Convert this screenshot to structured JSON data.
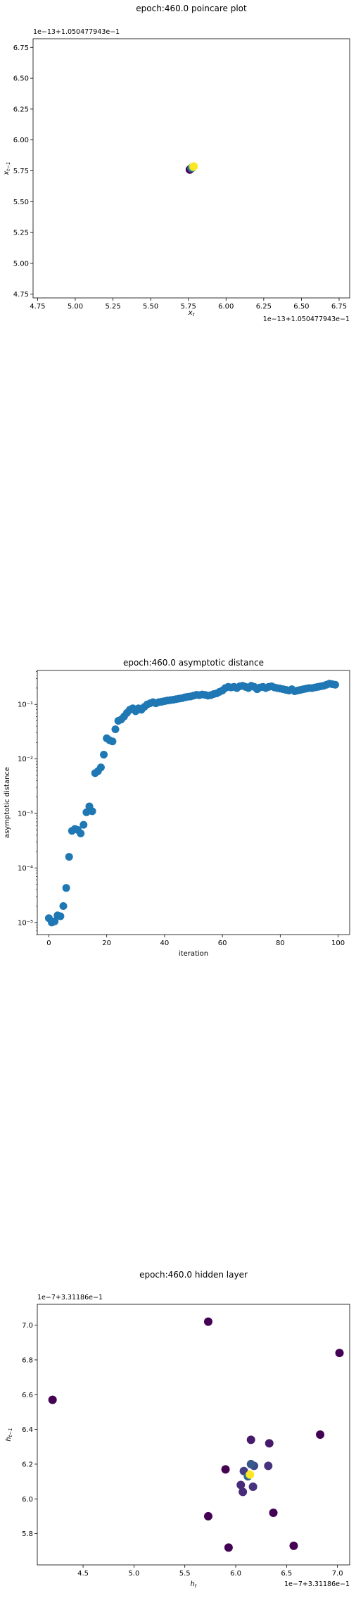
{
  "chart_data": [
    {
      "type": "scatter",
      "title": "epoch:460.0 poincare plot",
      "xlabel": "x_t",
      "ylabel": "x_{t-1}",
      "x_offset_text": "1e−13+1.050477943e−1",
      "y_offset_text": "1e−13+1.050477943e−1",
      "xlim": [
        4.72,
        6.82
      ],
      "ylim": [
        4.72,
        6.82
      ],
      "xticks": [
        "4.75",
        "5.00",
        "5.25",
        "5.50",
        "5.75",
        "6.00",
        "6.25",
        "6.50",
        "6.75"
      ],
      "yticks": [
        "4.75",
        "5.00",
        "5.25",
        "5.50",
        "5.75",
        "6.00",
        "6.25",
        "6.50",
        "6.75"
      ],
      "points": [
        {
          "x": 5.76,
          "y": 5.76,
          "color": "#440154"
        },
        {
          "x": 5.77,
          "y": 5.77,
          "color": "#3b528b"
        },
        {
          "x": 5.78,
          "y": 5.78,
          "color": "#21918c"
        },
        {
          "x": 5.78,
          "y": 5.78,
          "color": "#5ec962"
        },
        {
          "x": 5.785,
          "y": 5.785,
          "color": "#fde725"
        }
      ]
    },
    {
      "type": "scatter",
      "title": "epoch:460.0 asymptotic distance",
      "xlabel": "iteration",
      "ylabel": "asymptotic distance",
      "yscale": "log",
      "xlim": [
        -4,
        104
      ],
      "ylim": [
        6e-06,
        0.42
      ],
      "xticks": [
        "0",
        "20",
        "40",
        "60",
        "80",
        "100"
      ],
      "yticks": [
        "10⁻⁵",
        "10⁻⁴",
        "10⁻³",
        "10⁻²",
        "10⁻¹"
      ],
      "color": "#1f77b4",
      "x": [
        0,
        1,
        2,
        3,
        4,
        5,
        6,
        7,
        8,
        9,
        10,
        11,
        12,
        13,
        14,
        15,
        16,
        17,
        18,
        19,
        20,
        21,
        22,
        23,
        24,
        25,
        26,
        27,
        28,
        29,
        30,
        31,
        32,
        33,
        34,
        35,
        36,
        37,
        38,
        39,
        40,
        41,
        42,
        43,
        44,
        45,
        46,
        47,
        48,
        49,
        50,
        51,
        52,
        53,
        54,
        55,
        56,
        57,
        58,
        59,
        60,
        61,
        62,
        63,
        64,
        65,
        66,
        67,
        68,
        69,
        70,
        71,
        72,
        73,
        74,
        75,
        76,
        77,
        78,
        79,
        80,
        81,
        82,
        83,
        84,
        85,
        86,
        87,
        88,
        89,
        90,
        91,
        92,
        93,
        94,
        95,
        96,
        97,
        98,
        99
      ],
      "y": [
        1.2e-05,
        1e-05,
        1.05e-05,
        1.35e-05,
        1.3e-05,
        2e-05,
        4.3e-05,
        0.00016,
        0.00048,
        0.00052,
        0.0005,
        0.00043,
        0.00062,
        0.00105,
        0.00135,
        0.0011,
        0.0055,
        0.006,
        0.007,
        0.012,
        0.024,
        0.022,
        0.021,
        0.035,
        0.05,
        0.053,
        0.06,
        0.07,
        0.08,
        0.085,
        0.075,
        0.085,
        0.08,
        0.09,
        0.1,
        0.105,
        0.11,
        0.105,
        0.11,
        0.112,
        0.115,
        0.118,
        0.12,
        0.122,
        0.125,
        0.128,
        0.13,
        0.135,
        0.138,
        0.14,
        0.145,
        0.15,
        0.148,
        0.152,
        0.15,
        0.145,
        0.148,
        0.155,
        0.16,
        0.17,
        0.18,
        0.2,
        0.21,
        0.205,
        0.21,
        0.2,
        0.215,
        0.22,
        0.21,
        0.2,
        0.22,
        0.21,
        0.19,
        0.205,
        0.21,
        0.2,
        0.21,
        0.215,
        0.205,
        0.2,
        0.195,
        0.19,
        0.185,
        0.18,
        0.19,
        0.175,
        0.18,
        0.185,
        0.19,
        0.195,
        0.2,
        0.2,
        0.205,
        0.21,
        0.215,
        0.22,
        0.23,
        0.24,
        0.235,
        0.23
      ]
    },
    {
      "type": "scatter",
      "title": "epoch:460.0 hidden layer",
      "xlabel": "h_t",
      "ylabel": "h_{t-1}",
      "x_offset_text": "1e−7+3.31186e−1",
      "y_offset_text": "1e−7+3.31186e−1",
      "xlim": [
        4.05,
        7.12
      ],
      "ylim": [
        5.62,
        7.12
      ],
      "xticks": [
        "4.5",
        "5.0",
        "5.5",
        "6.0",
        "6.5",
        "7.0"
      ],
      "yticks": [
        "5.8",
        "6.0",
        "6.2",
        "6.4",
        "6.6",
        "6.8",
        "7.0"
      ],
      "points": [
        {
          "x": 4.2,
          "y": 6.57,
          "color": "#440154"
        },
        {
          "x": 5.73,
          "y": 7.02,
          "color": "#440154"
        },
        {
          "x": 7.02,
          "y": 6.84,
          "color": "#440154"
        },
        {
          "x": 6.83,
          "y": 6.37,
          "color": "#440154"
        },
        {
          "x": 6.57,
          "y": 5.73,
          "color": "#440154"
        },
        {
          "x": 5.93,
          "y": 5.72,
          "color": "#440154"
        },
        {
          "x": 5.73,
          "y": 5.9,
          "color": "#440154"
        },
        {
          "x": 6.37,
          "y": 5.92,
          "color": "#440154"
        },
        {
          "x": 5.9,
          "y": 6.17,
          "color": "#440154"
        },
        {
          "x": 6.33,
          "y": 6.32,
          "color": "#481a6c"
        },
        {
          "x": 6.15,
          "y": 6.34,
          "color": "#481a6c"
        },
        {
          "x": 6.07,
          "y": 6.04,
          "color": "#472a7a"
        },
        {
          "x": 6.05,
          "y": 6.08,
          "color": "#472a7a"
        },
        {
          "x": 6.32,
          "y": 6.19,
          "color": "#46327e"
        },
        {
          "x": 6.17,
          "y": 6.07,
          "color": "#46327e"
        },
        {
          "x": 6.08,
          "y": 6.16,
          "color": "#433e85"
        },
        {
          "x": 6.18,
          "y": 6.19,
          "color": "#3e4989"
        },
        {
          "x": 6.15,
          "y": 6.2,
          "color": "#38588c"
        },
        {
          "x": 6.12,
          "y": 6.13,
          "color": "#31688e"
        },
        {
          "x": 6.14,
          "y": 6.14,
          "color": "#fde725"
        }
      ]
    }
  ]
}
